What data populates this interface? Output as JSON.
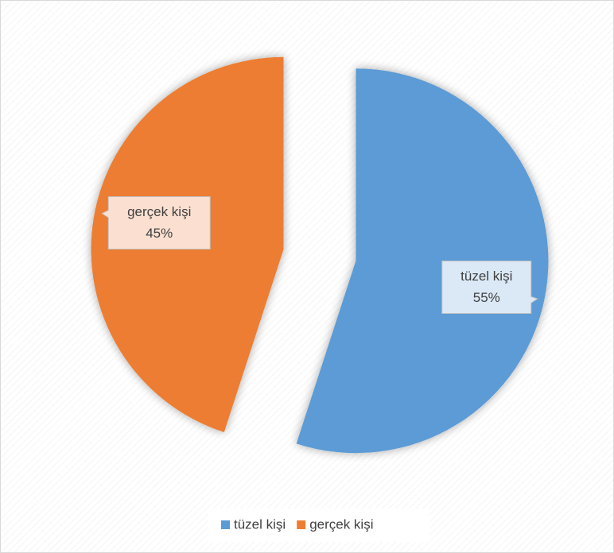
{
  "chart_data": {
    "type": "pie",
    "categories": [
      "tüzel kişi",
      "gerçek kişi"
    ],
    "values": [
      55,
      45
    ],
    "value_labels": [
      "55%",
      "45%"
    ],
    "colors": [
      "#5b9bd5",
      "#ed7d31"
    ],
    "legend": "bottom"
  }
}
